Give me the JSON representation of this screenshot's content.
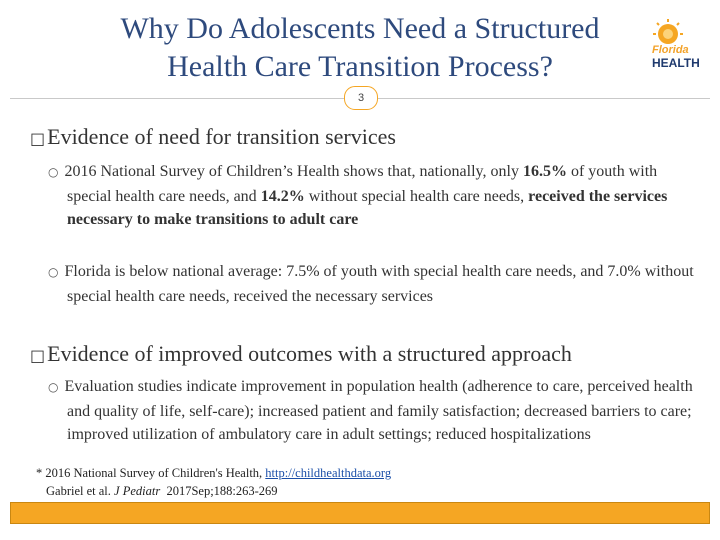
{
  "title": {
    "line1": "Why Do Adolescents Need a Structured",
    "line2": "Health Care Transition Process?"
  },
  "slide_number": "3",
  "logo": {
    "word1": "Florida",
    "word2": "HEALTH",
    "icon": "sun-icon",
    "color_orange": "#f5a623",
    "color_navy": "#1f3a6e"
  },
  "bullets": [
    {
      "marker": "□",
      "heading": "Evidence of need for transition services",
      "items": [
        {
          "marker": "○",
          "p1": "2016 National Survey of Children’s Health shows that, nationally, only ",
          "b1": "16.5%",
          "p2": " of youth with special health care needs, and ",
          "b2": "14.2%",
          "p3": " without special health care needs, ",
          "b3": "received the services necessary to make transitions to adult care",
          "p4": ""
        },
        {
          "marker": "○",
          "p1": "Florida is below national average: 7.5% of youth with special health care needs, and 7.0% without special health care needs, received the necessary services"
        }
      ]
    },
    {
      "marker": "□",
      "heading": "Evidence of improved outcomes with a structured approach",
      "items": [
        {
          "marker": "○",
          "p1": "Evaluation studies indicate improvement in population health (adherence to care, perceived health and quality of life, self-care); increased patient and family satisfaction; decreased barriers to care; improved utilization of ambulatory care in adult settings; reduced hospitalizations"
        }
      ]
    }
  ],
  "footnote": {
    "line1_text": "* 2016 National Survey of Children's Health, ",
    "line1_link": "http://childhealthdata.org",
    "line2_author": "Gabriel et al. ",
    "line2_journal": "J Pediatr",
    "line2_rest": "  2017Sep;188:263-269"
  },
  "colors": {
    "title": "#2e4a7d",
    "accent": "#f5a623",
    "body": "#333333"
  }
}
